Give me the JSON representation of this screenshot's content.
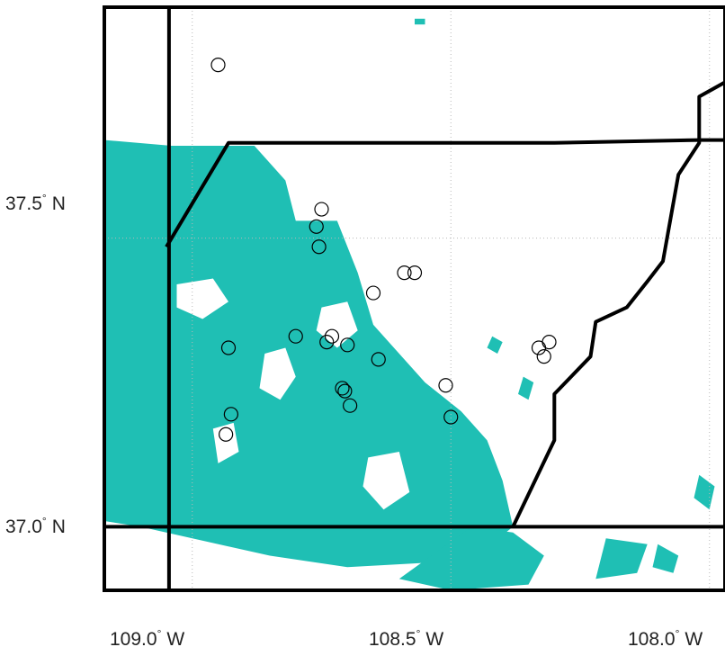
{
  "colors": {
    "land_cover": "#1fbfb4",
    "boundary": "#000000",
    "frame": "#000000",
    "grid": "#b8b8b8",
    "marker_stroke": "#000000",
    "background": "#ffffff"
  },
  "axes": {
    "lon_range": [
      -109.17,
      -107.97
    ],
    "lat_range": [
      36.89,
      37.9
    ],
    "lon_ticks": [
      {
        "value": -109.0,
        "num": "109.0",
        "deg": "°",
        "hemi": "W"
      },
      {
        "value": -108.5,
        "num": "108.5",
        "deg": "°",
        "hemi": "W"
      },
      {
        "value": -108.0,
        "num": "108.0",
        "deg": "°",
        "hemi": "W"
      }
    ],
    "lat_ticks": [
      {
        "value": 37.5,
        "num": "37.5",
        "deg": "°",
        "hemi": "N"
      },
      {
        "value": 37.0,
        "num": "37.0",
        "deg": "°",
        "hemi": "N"
      }
    ],
    "grid": true
  },
  "boundaries": [
    {
      "name": "state-line-west",
      "points": [
        [
          -109.045,
          37.9
        ],
        [
          -109.045,
          36.89
        ]
      ]
    },
    {
      "name": "state-line-south",
      "points": [
        [
          -109.17,
          37.0
        ],
        [
          -107.97,
          37.0
        ]
      ]
    },
    {
      "name": "county-line-north",
      "points": [
        [
          -109.05,
          37.485
        ],
        [
          -108.93,
          37.665
        ],
        [
          -108.3,
          37.665
        ],
        [
          -108.02,
          37.67
        ],
        [
          -107.97,
          37.67
        ]
      ]
    },
    {
      "name": "county-line-east",
      "points": [
        [
          -108.38,
          37.0
        ],
        [
          -108.3,
          37.15
        ],
        [
          -108.3,
          37.23
        ],
        [
          -108.23,
          37.295
        ],
        [
          -108.22,
          37.355
        ],
        [
          -108.16,
          37.38
        ],
        [
          -108.12,
          37.425
        ],
        [
          -108.09,
          37.46
        ],
        [
          -108.06,
          37.61
        ],
        [
          -108.02,
          37.665
        ],
        [
          -108.02,
          37.745
        ],
        [
          -107.97,
          37.77
        ]
      ]
    }
  ],
  "land_cover_regions": [
    [
      [
        -109.17,
        37.67
      ],
      [
        -109.04,
        37.66
      ],
      [
        -108.88,
        37.66
      ],
      [
        -108.82,
        37.6
      ],
      [
        -108.8,
        37.53
      ],
      [
        -108.72,
        37.53
      ],
      [
        -108.68,
        37.44
      ],
      [
        -108.65,
        37.35
      ],
      [
        -108.6,
        37.3
      ],
      [
        -108.55,
        37.25
      ],
      [
        -108.48,
        37.2
      ],
      [
        -108.43,
        37.15
      ],
      [
        -108.4,
        37.08
      ],
      [
        -108.38,
        37.0
      ],
      [
        -108.45,
        36.95
      ],
      [
        -108.5,
        36.94
      ],
      [
        -108.7,
        36.93
      ],
      [
        -108.85,
        36.95
      ],
      [
        -109.0,
        36.98
      ],
      [
        -109.1,
        37.0
      ],
      [
        -109.17,
        37.01
      ]
    ],
    [
      [
        -108.46,
        37.0
      ],
      [
        -108.38,
        36.99
      ],
      [
        -108.32,
        36.95
      ],
      [
        -108.35,
        36.9
      ],
      [
        -108.5,
        36.89
      ],
      [
        -108.6,
        36.91
      ]
    ],
    [
      [
        -108.2,
        36.98
      ],
      [
        -108.12,
        36.97
      ],
      [
        -108.14,
        36.92
      ],
      [
        -108.22,
        36.91
      ]
    ],
    [
      [
        -108.02,
        37.09
      ],
      [
        -107.99,
        37.07
      ],
      [
        -108.0,
        37.03
      ],
      [
        -108.03,
        37.05
      ]
    ],
    [
      [
        -108.57,
        37.88
      ],
      [
        -108.55,
        37.88
      ],
      [
        -108.55,
        37.87
      ],
      [
        -108.57,
        37.87
      ]
    ],
    [
      [
        -108.36,
        37.26
      ],
      [
        -108.34,
        37.25
      ],
      [
        -108.35,
        37.22
      ],
      [
        -108.37,
        37.23
      ]
    ],
    [
      [
        -108.42,
        37.33
      ],
      [
        -108.4,
        37.32
      ],
      [
        -108.41,
        37.3
      ],
      [
        -108.43,
        37.31
      ]
    ],
    [
      [
        -108.1,
        36.97
      ],
      [
        -108.06,
        36.95
      ],
      [
        -108.07,
        36.92
      ],
      [
        -108.11,
        36.93
      ]
    ]
  ],
  "land_cover_holes": [
    [
      [
        -109.03,
        37.42
      ],
      [
        -108.96,
        37.43
      ],
      [
        -108.93,
        37.39
      ],
      [
        -108.98,
        37.36
      ],
      [
        -109.03,
        37.38
      ]
    ],
    [
      [
        -108.86,
        37.3
      ],
      [
        -108.82,
        37.31
      ],
      [
        -108.8,
        37.26
      ],
      [
        -108.83,
        37.22
      ],
      [
        -108.87,
        37.24
      ]
    ],
    [
      [
        -108.75,
        37.38
      ],
      [
        -108.7,
        37.39
      ],
      [
        -108.68,
        37.34
      ],
      [
        -108.72,
        37.31
      ],
      [
        -108.76,
        37.34
      ]
    ],
    [
      [
        -108.96,
        37.17
      ],
      [
        -108.92,
        37.18
      ],
      [
        -108.91,
        37.13
      ],
      [
        -108.95,
        37.11
      ]
    ],
    [
      [
        -108.66,
        37.12
      ],
      [
        -108.6,
        37.13
      ],
      [
        -108.58,
        37.06
      ],
      [
        -108.63,
        37.03
      ],
      [
        -108.67,
        37.07
      ]
    ]
  ],
  "stations": [
    {
      "lon": -108.95,
      "lat": 37.8
    },
    {
      "lon": -108.75,
      "lat": 37.55
    },
    {
      "lon": -108.76,
      "lat": 37.52
    },
    {
      "lon": -108.755,
      "lat": 37.485
    },
    {
      "lon": -108.59,
      "lat": 37.44
    },
    {
      "lon": -108.57,
      "lat": 37.44
    },
    {
      "lon": -108.65,
      "lat": 37.405
    },
    {
      "lon": -108.8,
      "lat": 37.33
    },
    {
      "lon": -108.74,
      "lat": 37.32
    },
    {
      "lon": -108.73,
      "lat": 37.33
    },
    {
      "lon": -108.7,
      "lat": 37.315
    },
    {
      "lon": -108.64,
      "lat": 37.29
    },
    {
      "lon": -108.93,
      "lat": 37.31
    },
    {
      "lon": -108.71,
      "lat": 37.24
    },
    {
      "lon": -108.705,
      "lat": 37.235
    },
    {
      "lon": -108.695,
      "lat": 37.21
    },
    {
      "lon": -108.51,
      "lat": 37.245
    },
    {
      "lon": -108.5,
      "lat": 37.19
    },
    {
      "lon": -108.33,
      "lat": 37.31
    },
    {
      "lon": -108.32,
      "lat": 37.295
    },
    {
      "lon": -108.31,
      "lat": 37.32
    },
    {
      "lon": -108.925,
      "lat": 37.195
    },
    {
      "lon": -108.935,
      "lat": 37.16
    }
  ]
}
